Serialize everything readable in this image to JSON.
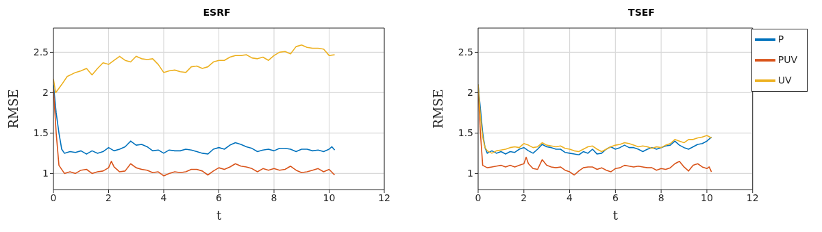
{
  "chart_data": [
    {
      "type": "line",
      "title": "ESRF",
      "xlabel": "t",
      "ylabel": "RMSE",
      "xlim": [
        0,
        12
      ],
      "xticks": [
        0,
        2,
        4,
        6,
        8,
        10,
        12
      ],
      "ylim": [
        0.8,
        2.8
      ],
      "yticks": [
        1,
        1.5,
        2,
        2.5
      ],
      "grid": true,
      "legend": false,
      "series": [
        {
          "color": "#0072bd",
          "x": [
            0,
            0.1,
            0.2,
            0.3,
            0.4,
            0.6,
            0.8,
            1.0,
            1.2,
            1.4,
            1.6,
            1.8,
            2.0,
            2.2,
            2.4,
            2.6,
            2.8,
            3.0,
            3.2,
            3.4,
            3.6,
            3.8,
            4.0,
            4.2,
            4.4,
            4.6,
            4.8,
            5.0,
            5.2,
            5.4,
            5.6,
            5.8,
            6.0,
            6.2,
            6.4,
            6.6,
            6.8,
            7.0,
            7.2,
            7.4,
            7.6,
            7.8,
            8.0,
            8.2,
            8.4,
            8.6,
            8.8,
            9.0,
            9.2,
            9.4,
            9.6,
            9.8,
            10.0,
            10.1,
            10.2
          ],
          "values": [
            2.1,
            1.75,
            1.5,
            1.3,
            1.25,
            1.27,
            1.26,
            1.28,
            1.24,
            1.28,
            1.25,
            1.27,
            1.32,
            1.28,
            1.3,
            1.33,
            1.4,
            1.35,
            1.36,
            1.33,
            1.28,
            1.29,
            1.25,
            1.29,
            1.28,
            1.28,
            1.3,
            1.29,
            1.27,
            1.25,
            1.24,
            1.3,
            1.32,
            1.3,
            1.35,
            1.38,
            1.36,
            1.33,
            1.31,
            1.27,
            1.29,
            1.3,
            1.28,
            1.31,
            1.31,
            1.3,
            1.27,
            1.3,
            1.3,
            1.28,
            1.29,
            1.27,
            1.3,
            1.33,
            1.29
          ]
        },
        {
          "color": "#d95319",
          "x": [
            0,
            0.1,
            0.2,
            0.4,
            0.6,
            0.8,
            1.0,
            1.2,
            1.4,
            1.6,
            1.8,
            2.0,
            2.1,
            2.2,
            2.4,
            2.6,
            2.8,
            3.0,
            3.2,
            3.4,
            3.6,
            3.8,
            4.0,
            4.2,
            4.4,
            4.6,
            4.8,
            5.0,
            5.2,
            5.4,
            5.6,
            5.8,
            6.0,
            6.2,
            6.4,
            6.6,
            6.8,
            7.0,
            7.2,
            7.4,
            7.6,
            7.8,
            8.0,
            8.2,
            8.4,
            8.6,
            8.8,
            9.0,
            9.2,
            9.4,
            9.6,
            9.8,
            10.0,
            10.2
          ],
          "values": [
            2.05,
            1.5,
            1.1,
            1.0,
            1.02,
            1.0,
            1.04,
            1.05,
            1.0,
            1.02,
            1.03,
            1.07,
            1.15,
            1.08,
            1.02,
            1.03,
            1.12,
            1.07,
            1.05,
            1.04,
            1.01,
            1.02,
            0.97,
            1.0,
            1.02,
            1.01,
            1.02,
            1.05,
            1.05,
            1.03,
            0.98,
            1.03,
            1.07,
            1.05,
            1.08,
            1.12,
            1.09,
            1.08,
            1.06,
            1.02,
            1.06,
            1.04,
            1.06,
            1.04,
            1.05,
            1.09,
            1.04,
            1.01,
            1.02,
            1.04,
            1.06,
            1.02,
            1.05,
            0.98
          ]
        },
        {
          "color": "#edb120",
          "x": [
            0,
            0.08,
            0.3,
            0.5,
            0.8,
            1.0,
            1.2,
            1.4,
            1.6,
            1.8,
            2.0,
            2.2,
            2.4,
            2.6,
            2.8,
            3.0,
            3.2,
            3.4,
            3.6,
            3.8,
            4.0,
            4.2,
            4.4,
            4.6,
            4.8,
            5.0,
            5.2,
            5.4,
            5.6,
            5.8,
            6.0,
            6.2,
            6.4,
            6.6,
            6.8,
            7.0,
            7.2,
            7.4,
            7.6,
            7.8,
            8.0,
            8.2,
            8.4,
            8.6,
            8.8,
            9.0,
            9.2,
            9.4,
            9.6,
            9.8,
            10.0,
            10.2
          ],
          "values": [
            2.17,
            2.0,
            2.1,
            2.2,
            2.25,
            2.27,
            2.3,
            2.22,
            2.3,
            2.37,
            2.35,
            2.4,
            2.45,
            2.4,
            2.38,
            2.45,
            2.42,
            2.41,
            2.42,
            2.35,
            2.25,
            2.27,
            2.28,
            2.26,
            2.25,
            2.32,
            2.33,
            2.3,
            2.32,
            2.38,
            2.4,
            2.4,
            2.44,
            2.46,
            2.46,
            2.47,
            2.43,
            2.42,
            2.44,
            2.4,
            2.46,
            2.5,
            2.51,
            2.48,
            2.57,
            2.59,
            2.56,
            2.55,
            2.55,
            2.54,
            2.46,
            2.47
          ]
        }
      ]
    },
    {
      "type": "line",
      "title": "TSEF",
      "xlabel": "t",
      "ylabel": "RMSE",
      "xlim": [
        0,
        12
      ],
      "xticks": [
        0,
        2,
        4,
        6,
        8,
        10,
        12
      ],
      "ylim": [
        0.8,
        2.8
      ],
      "yticks": [
        1,
        1.5,
        2,
        2.5
      ],
      "grid": true,
      "legend": "top right",
      "series": [
        {
          "name": "P",
          "color": "#0072bd",
          "x": [
            0,
            0.1,
            0.2,
            0.3,
            0.4,
            0.6,
            0.8,
            1.0,
            1.2,
            1.4,
            1.6,
            1.8,
            2.0,
            2.2,
            2.4,
            2.6,
            2.8,
            3.0,
            3.2,
            3.4,
            3.6,
            3.8,
            4.0,
            4.2,
            4.4,
            4.6,
            4.8,
            5.0,
            5.2,
            5.4,
            5.6,
            5.8,
            6.0,
            6.2,
            6.4,
            6.6,
            6.8,
            7.0,
            7.2,
            7.4,
            7.6,
            7.8,
            8.0,
            8.2,
            8.4,
            8.6,
            8.8,
            9.0,
            9.2,
            9.4,
            9.6,
            9.8,
            10.0,
            10.2
          ],
          "values": [
            2.1,
            1.8,
            1.5,
            1.32,
            1.25,
            1.28,
            1.25,
            1.27,
            1.24,
            1.27,
            1.26,
            1.3,
            1.32,
            1.28,
            1.25,
            1.3,
            1.36,
            1.33,
            1.32,
            1.3,
            1.3,
            1.26,
            1.25,
            1.24,
            1.23,
            1.27,
            1.25,
            1.3,
            1.24,
            1.25,
            1.3,
            1.33,
            1.3,
            1.32,
            1.35,
            1.32,
            1.32,
            1.3,
            1.27,
            1.3,
            1.32,
            1.3,
            1.32,
            1.34,
            1.35,
            1.4,
            1.35,
            1.32,
            1.3,
            1.33,
            1.36,
            1.37,
            1.4,
            1.45
          ]
        },
        {
          "name": "PUV",
          "color": "#d95319",
          "x": [
            0,
            0.1,
            0.2,
            0.4,
            0.6,
            0.8,
            1.0,
            1.2,
            1.4,
            1.6,
            1.8,
            2.0,
            2.1,
            2.2,
            2.4,
            2.6,
            2.8,
            3.0,
            3.2,
            3.4,
            3.6,
            3.8,
            4.0,
            4.2,
            4.4,
            4.6,
            4.8,
            5.0,
            5.2,
            5.4,
            5.6,
            5.8,
            6.0,
            6.2,
            6.4,
            6.6,
            6.8,
            7.0,
            7.2,
            7.4,
            7.6,
            7.8,
            8.0,
            8.2,
            8.4,
            8.6,
            8.8,
            9.0,
            9.2,
            9.4,
            9.6,
            9.8,
            10.0,
            10.1,
            10.2
          ],
          "values": [
            2.05,
            1.5,
            1.1,
            1.07,
            1.08,
            1.09,
            1.1,
            1.08,
            1.1,
            1.08,
            1.1,
            1.12,
            1.2,
            1.12,
            1.06,
            1.05,
            1.17,
            1.1,
            1.08,
            1.07,
            1.08,
            1.04,
            1.02,
            0.98,
            1.03,
            1.07,
            1.08,
            1.08,
            1.05,
            1.07,
            1.04,
            1.02,
            1.06,
            1.07,
            1.1,
            1.09,
            1.08,
            1.09,
            1.08,
            1.07,
            1.07,
            1.04,
            1.06,
            1.05,
            1.07,
            1.12,
            1.15,
            1.08,
            1.03,
            1.1,
            1.12,
            1.08,
            1.06,
            1.08,
            1.02
          ]
        },
        {
          "name": "UV",
          "color": "#edb120",
          "x": [
            0,
            0.1,
            0.2,
            0.3,
            0.4,
            0.6,
            0.8,
            1.0,
            1.2,
            1.4,
            1.6,
            1.8,
            2.0,
            2.2,
            2.4,
            2.6,
            2.8,
            3.0,
            3.2,
            3.4,
            3.6,
            3.8,
            4.0,
            4.2,
            4.4,
            4.6,
            4.8,
            5.0,
            5.2,
            5.4,
            5.6,
            5.8,
            6.0,
            6.2,
            6.4,
            6.6,
            6.8,
            7.0,
            7.2,
            7.4,
            7.6,
            7.8,
            8.0,
            8.2,
            8.4,
            8.6,
            8.8,
            9.0,
            9.2,
            9.4,
            9.6,
            9.8,
            10.0,
            10.2
          ],
          "values": [
            2.1,
            1.7,
            1.45,
            1.32,
            1.28,
            1.25,
            1.28,
            1.29,
            1.3,
            1.32,
            1.33,
            1.32,
            1.37,
            1.35,
            1.32,
            1.33,
            1.38,
            1.35,
            1.34,
            1.33,
            1.34,
            1.31,
            1.3,
            1.28,
            1.27,
            1.3,
            1.33,
            1.34,
            1.3,
            1.27,
            1.3,
            1.33,
            1.35,
            1.36,
            1.38,
            1.37,
            1.35,
            1.33,
            1.34,
            1.33,
            1.31,
            1.33,
            1.32,
            1.35,
            1.37,
            1.42,
            1.4,
            1.38,
            1.42,
            1.42,
            1.44,
            1.45,
            1.47,
            1.44
          ]
        }
      ]
    }
  ]
}
